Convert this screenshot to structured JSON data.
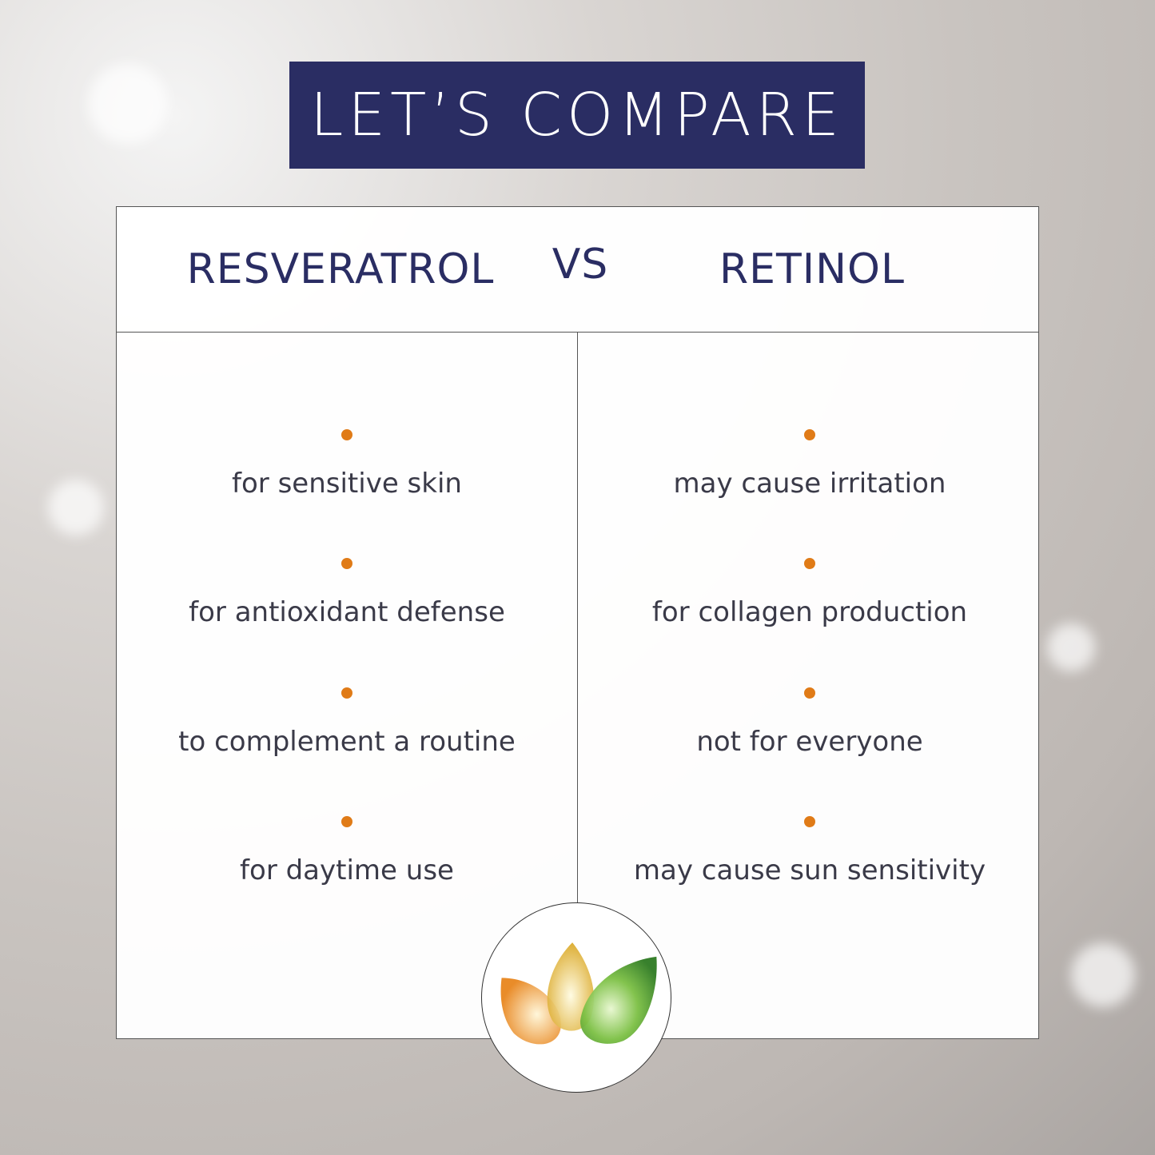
{
  "banner": {
    "title": "LET’S COMPARE",
    "color": "#2a2d63"
  },
  "header": {
    "left": "RESVERATROL",
    "vs": "VS",
    "right": "RETINOL"
  },
  "bullet_color": "#e07b17",
  "left_items": [
    "for sensitive skin",
    "for antioxidant defense",
    "to complement a routine",
    "for daytime use"
  ],
  "right_items": [
    "may cause irritation",
    "for collagen production",
    "not for everyone",
    "may cause sun sensitivity"
  ],
  "logo": {
    "icon": "three-leaves-logo",
    "colors": [
      "#e8861e",
      "#e6bb26",
      "#4f9e2c"
    ]
  }
}
